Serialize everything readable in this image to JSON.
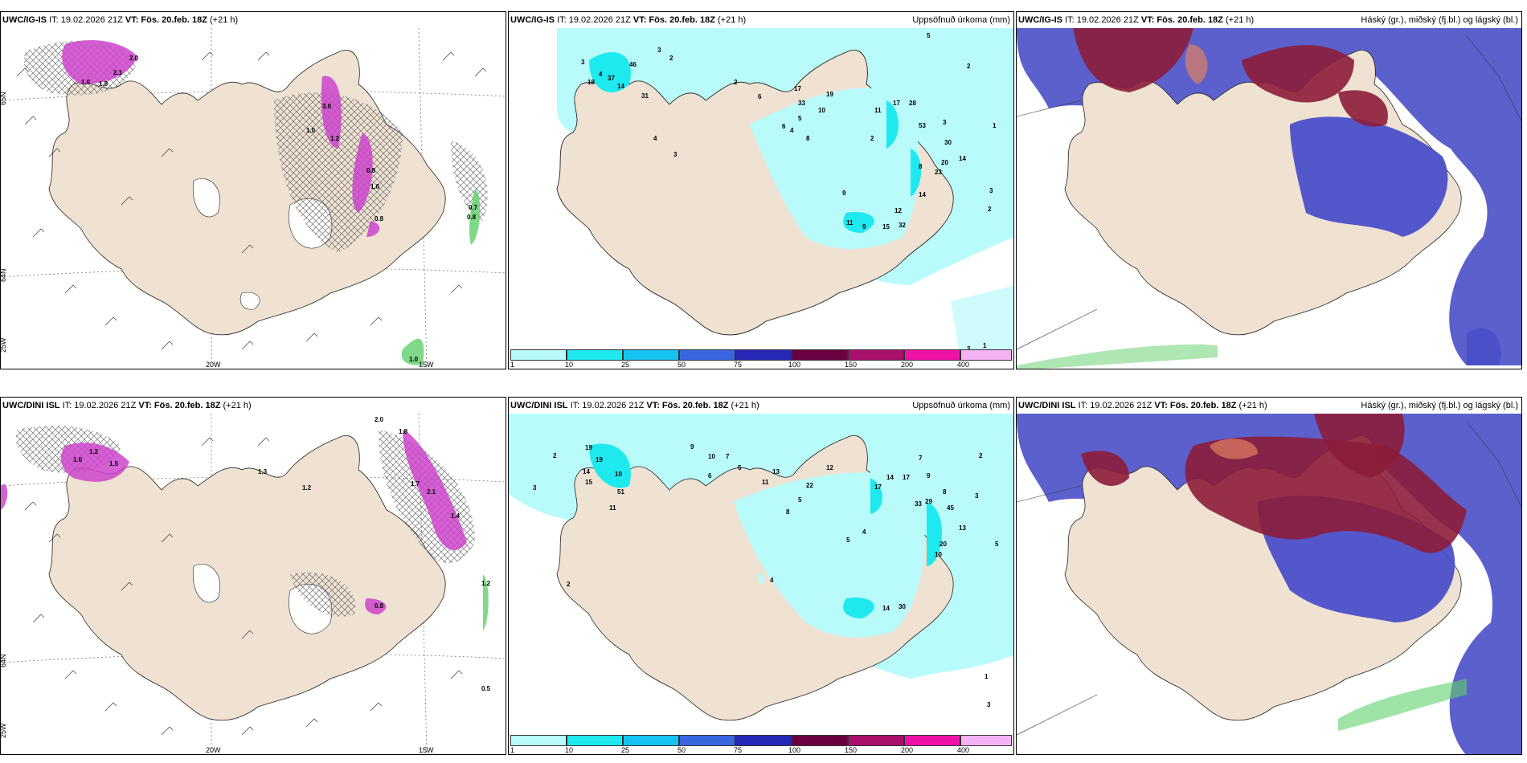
{
  "rows": [
    {
      "model": "UWC/IG-IS",
      "it": "IT: 19.02.2026 21Z",
      "vt": "VT: Fös. 20.feb. 18Z",
      "lead": "(+21 h)",
      "wind_labels": [
        "2.0",
        "2.1",
        "1.0",
        "1.8",
        "3.0",
        "1.0",
        "1.2",
        "0.8",
        "1.0",
        "0.8",
        "0.7",
        "0.8",
        "1.0"
      ],
      "precip_labels": [
        "3",
        "2",
        "5",
        "2",
        "3",
        "4",
        "14",
        "46",
        "37",
        "18",
        "31",
        "2",
        "6",
        "4",
        "3",
        "17",
        "19",
        "10",
        "33",
        "11",
        "17",
        "28",
        "53",
        "4",
        "5",
        "6",
        "8",
        "3",
        "30",
        "20",
        "14",
        "23",
        "8",
        "2",
        "12",
        "15",
        "32",
        "11",
        "9",
        "9",
        "14",
        "3",
        "2",
        "1",
        "2",
        "1"
      ]
    },
    {
      "model": "UWC/DINI ISL",
      "it": "IT: 19.02.2026 21Z",
      "vt": "VT: Fös. 20.feb. 18Z",
      "lead": "(+21 h)",
      "wind_labels": [
        "2.0",
        "1.8",
        "1.2",
        "1.0",
        "1.5",
        "1.3",
        "2.1",
        "1.4",
        "1.2",
        "0.8",
        "1.7",
        "1.2",
        "0.5"
      ],
      "precip_labels": [
        "2",
        "3",
        "19",
        "19",
        "14",
        "15",
        "10",
        "51",
        "11",
        "9",
        "10",
        "7",
        "6",
        "5",
        "13",
        "11",
        "22",
        "12",
        "8",
        "5",
        "17",
        "14",
        "17",
        "33",
        "29",
        "45",
        "13",
        "20",
        "10",
        "14",
        "30",
        "5",
        "4",
        "2",
        "4",
        "2",
        "1",
        "3",
        "7",
        "9",
        "8",
        "3",
        "4",
        "5"
      ]
    }
  ],
  "col_titles": {
    "precip": "Uppsöfnuð úrkoma (mm)",
    "cloud": "Háský (gr.), miðský (fj.bl.) og lágský (bl.)"
  },
  "axes": {
    "lat_top": "65N",
    "lat_bottom": "64N",
    "lon_left": "25W",
    "lon_mid": "20W",
    "lon_right": "15W",
    "lat_top_right": "65N",
    "lat_bottom_right": "64N"
  },
  "legend": {
    "ticks": [
      "1",
      "10",
      "25",
      "50",
      "75",
      "100",
      "150",
      "200",
      "400"
    ],
    "colors": [
      "#b9fbfb",
      "#1ee9ee",
      "#14c3ef",
      "#3a67e0",
      "#2727b8",
      "#6a0040",
      "#a8106c",
      "#f012a8",
      "#f5b2f5"
    ]
  },
  "colors": {
    "land": "#efe2d2",
    "precip_light": "#b9fbfb",
    "precip_mid": "#1ee9ee",
    "snow": "#cc44cc",
    "low_cloud": "#4a4fc8",
    "high_cloud": "#8c1d3a",
    "mid_cloud": "#e08060"
  }
}
